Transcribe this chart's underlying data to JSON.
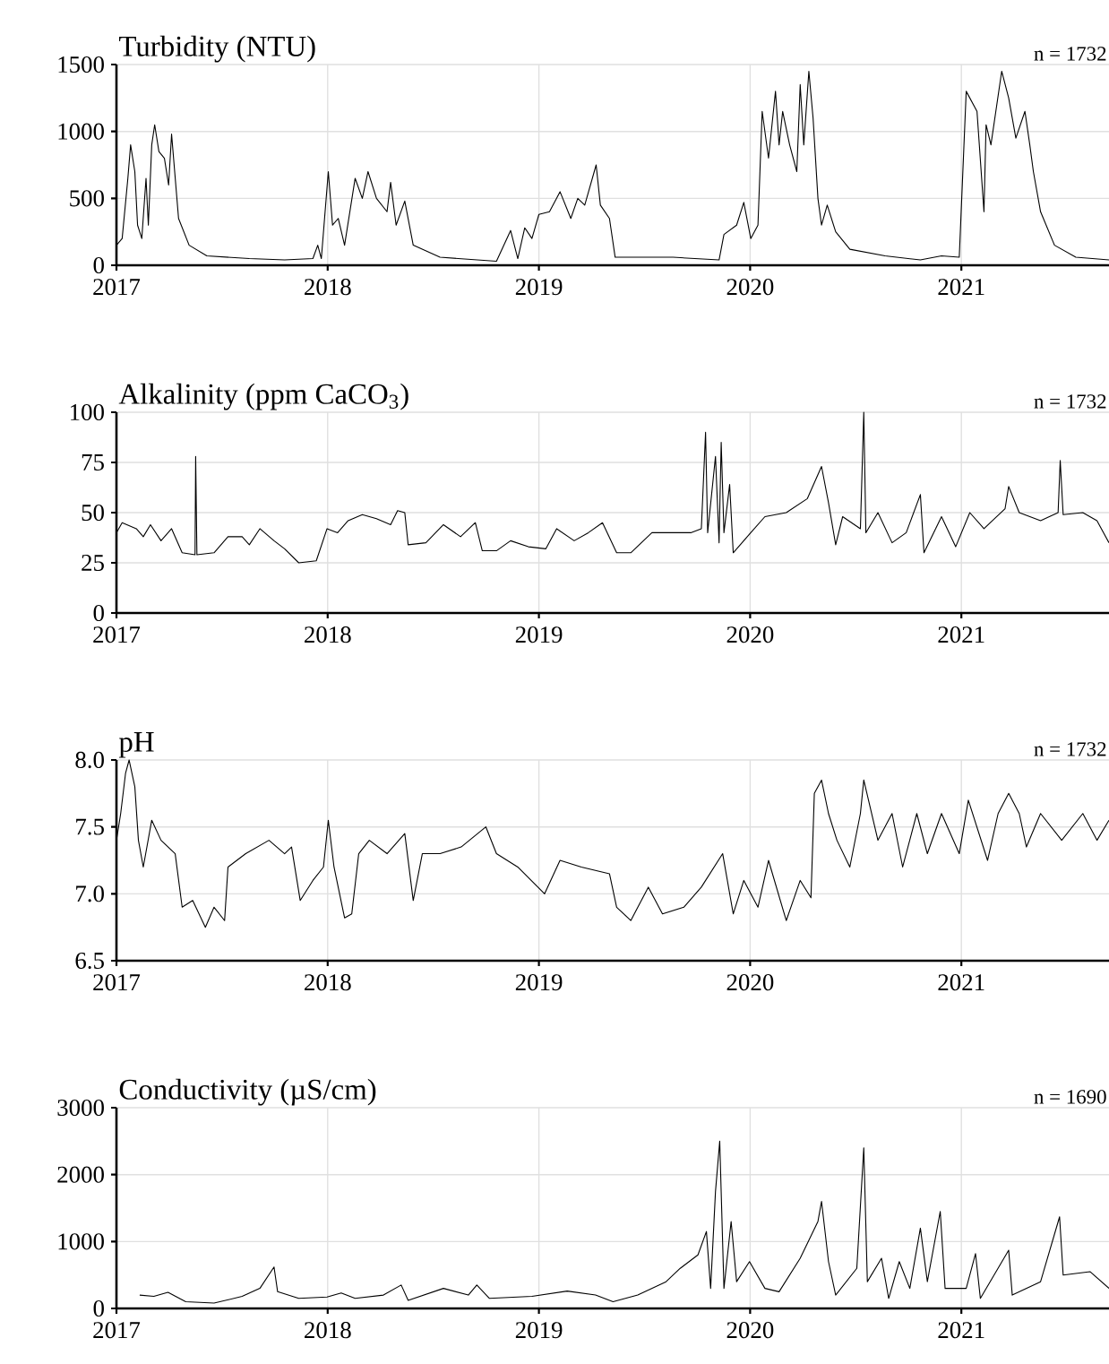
{
  "chart_data": [
    {
      "type": "line",
      "title": "Turbidity (NTU)",
      "annotations": [
        "n = 1732"
      ],
      "color": "#000000",
      "grid": true,
      "xlim": [
        2017.0,
        2021.699
      ],
      "xticks": [
        2017,
        2018,
        2019,
        2020,
        2021
      ],
      "ylim": [
        0,
        1500
      ],
      "yticks": [
        0,
        500,
        1000,
        1500
      ],
      "x": [
        2017.0,
        2017.027,
        2017.054,
        2017.067,
        2017.087,
        2017.1,
        2017.12,
        2017.14,
        2017.151,
        2017.167,
        2017.181,
        2017.201,
        2017.227,
        2017.247,
        2017.261,
        2017.294,
        2017.344,
        2017.428,
        2017.629,
        2017.796,
        2017.93,
        2017.953,
        2017.97,
        2018.003,
        2018.023,
        2018.05,
        2018.08,
        2018.13,
        2018.164,
        2018.191,
        2018.231,
        2018.281,
        2018.298,
        2018.324,
        2018.365,
        2018.405,
        2018.532,
        2018.799,
        2018.866,
        2018.9,
        2018.933,
        2018.967,
        2019.0,
        2019.05,
        2019.1,
        2019.151,
        2019.184,
        2019.217,
        2019.271,
        2019.291,
        2019.334,
        2019.361,
        2019.635,
        2019.853,
        2019.876,
        2019.936,
        2019.97,
        2020.003,
        2020.037,
        2020.057,
        2020.087,
        2020.12,
        2020.137,
        2020.154,
        2020.187,
        2020.221,
        2020.237,
        2020.254,
        2020.278,
        2020.298,
        2020.321,
        2020.338,
        2020.365,
        2020.405,
        2020.472,
        2020.639,
        2020.806,
        2020.906,
        2020.99,
        2021.023,
        2021.074,
        2021.107,
        2021.117,
        2021.14,
        2021.191,
        2021.224,
        2021.258,
        2021.301,
        2021.324,
        2021.341,
        2021.375,
        2021.441,
        2021.542,
        2021.699
      ],
      "values": [
        150,
        200,
        650,
        900,
        700,
        300,
        200,
        650,
        300,
        900,
        1050,
        850,
        800,
        600,
        980,
        350,
        150,
        70,
        50,
        40,
        50,
        150,
        50,
        700,
        300,
        350,
        150,
        650,
        500,
        700,
        500,
        400,
        620,
        300,
        480,
        150,
        60,
        30,
        260,
        50,
        280,
        200,
        380,
        400,
        550,
        350,
        500,
        450,
        750,
        450,
        350,
        60,
        60,
        40,
        230,
        300,
        470,
        200,
        300,
        1150,
        800,
        1300,
        900,
        1150,
        900,
        700,
        1350,
        900,
        1450,
        1100,
        500,
        300,
        450,
        250,
        120,
        70,
        40,
        70,
        60,
        1300,
        1150,
        400,
        1050,
        900,
        1450,
        1250,
        950,
        1150,
        900,
        700,
        400,
        150,
        60,
        40
      ]
    },
    {
      "type": "line",
      "title": "Alkalinity (ppm CaCO$_{3}$)",
      "annotations": [
        "n = 1732"
      ],
      "color": "#000000",
      "grid": true,
      "xlim": [
        2017.0,
        2021.699
      ],
      "xticks": [
        2017,
        2018,
        2019,
        2020,
        2021
      ],
      "ylim": [
        0,
        100
      ],
      "yticks": [
        0,
        25,
        50,
        75,
        100
      ],
      "x": [
        2017.0,
        2017.027,
        2017.094,
        2017.127,
        2017.161,
        2017.211,
        2017.261,
        2017.311,
        2017.372,
        2017.375,
        2017.381,
        2017.462,
        2017.528,
        2017.595,
        2017.629,
        2017.679,
        2017.746,
        2017.796,
        2017.863,
        2017.946,
        2017.997,
        2018.047,
        2018.097,
        2018.164,
        2018.231,
        2018.298,
        2018.331,
        2018.365,
        2018.381,
        2018.465,
        2018.548,
        2018.629,
        2018.699,
        2018.732,
        2018.799,
        2018.866,
        2018.95,
        2019.033,
        2019.084,
        2019.167,
        2019.234,
        2019.301,
        2019.368,
        2019.435,
        2019.535,
        2019.635,
        2019.719,
        2019.769,
        2019.789,
        2019.799,
        2019.836,
        2019.853,
        2019.863,
        2019.876,
        2019.903,
        2019.92,
        2020.003,
        2020.07,
        2020.171,
        2020.271,
        2020.338,
        2020.371,
        2020.405,
        2020.438,
        2020.522,
        2020.538,
        2020.548,
        2020.605,
        2020.672,
        2020.739,
        2020.806,
        2020.823,
        2020.906,
        2020.973,
        2021.04,
        2021.107,
        2021.207,
        2021.224,
        2021.274,
        2021.375,
        2021.458,
        2021.468,
        2021.482,
        2021.575,
        2021.642,
        2021.699
      ],
      "values": [
        40,
        45,
        42,
        38,
        44,
        36,
        42,
        30,
        29,
        78,
        29,
        30,
        38,
        38,
        34,
        42,
        36,
        32,
        25,
        26,
        42,
        40,
        46,
        49,
        47,
        44,
        51,
        50,
        34,
        35,
        44,
        38,
        45,
        31,
        31,
        36,
        33,
        32,
        42,
        36,
        40,
        45,
        30,
        30,
        40,
        40,
        40,
        42,
        90,
        40,
        78,
        35,
        85,
        40,
        64,
        30,
        40,
        48,
        50,
        57,
        73,
        55,
        34,
        48,
        42,
        100,
        40,
        50,
        35,
        40,
        59,
        30,
        48,
        33,
        50,
        42,
        52,
        63,
        50,
        46,
        50,
        76,
        49,
        50,
        46,
        35
      ]
    },
    {
      "type": "line",
      "title": "pH",
      "annotations": [
        "n = 1732"
      ],
      "color": "#000000",
      "grid": true,
      "xlim": [
        2017.0,
        2021.699
      ],
      "xticks": [
        2017,
        2018,
        2019,
        2020,
        2021
      ],
      "ylim": [
        6.5,
        8.0
      ],
      "yticks": [
        {
          "value": 6.5,
          "label": "6.5"
        },
        {
          "value": 7.0,
          "label": "7.0"
        },
        {
          "value": 7.5,
          "label": "7.5"
        },
        {
          "value": 8.0,
          "label": "8.0"
        }
      ],
      "x": [
        2017.0,
        2017.02,
        2017.043,
        2017.06,
        2017.087,
        2017.104,
        2017.127,
        2017.167,
        2017.211,
        2017.278,
        2017.311,
        2017.361,
        2017.421,
        2017.462,
        2017.512,
        2017.528,
        2017.612,
        2017.722,
        2017.796,
        2017.829,
        2017.87,
        2017.93,
        2017.98,
        2018.003,
        2018.03,
        2018.08,
        2018.114,
        2018.147,
        2018.197,
        2018.281,
        2018.365,
        2018.405,
        2018.448,
        2018.532,
        2018.632,
        2018.749,
        2018.799,
        2018.9,
        2019.027,
        2019.1,
        2019.201,
        2019.334,
        2019.368,
        2019.435,
        2019.518,
        2019.585,
        2019.686,
        2019.769,
        2019.87,
        2019.92,
        2019.97,
        2020.037,
        2020.087,
        2020.171,
        2020.237,
        2020.288,
        2020.304,
        2020.338,
        2020.371,
        2020.411,
        2020.472,
        2020.522,
        2020.538,
        2020.605,
        2020.672,
        2020.722,
        2020.789,
        2020.839,
        2020.906,
        2020.99,
        2021.033,
        2021.124,
        2021.174,
        2021.224,
        2021.274,
        2021.308,
        2021.375,
        2021.475,
        2021.575,
        2021.642,
        2021.699
      ],
      "values": [
        7.4,
        7.6,
        7.9,
        8.0,
        7.8,
        7.4,
        7.2,
        7.55,
        7.4,
        7.3,
        6.9,
        6.95,
        6.75,
        6.9,
        6.8,
        7.2,
        7.3,
        7.4,
        7.3,
        7.35,
        6.95,
        7.1,
        7.2,
        7.55,
        7.2,
        6.82,
        6.85,
        7.3,
        7.4,
        7.3,
        7.45,
        6.95,
        7.3,
        7.3,
        7.35,
        7.5,
        7.3,
        7.2,
        7.0,
        7.25,
        7.2,
        7.15,
        6.9,
        6.8,
        7.05,
        6.85,
        6.9,
        7.05,
        7.3,
        6.85,
        7.1,
        6.9,
        7.25,
        6.8,
        7.1,
        6.97,
        7.75,
        7.85,
        7.6,
        7.4,
        7.2,
        7.6,
        7.85,
        7.4,
        7.6,
        7.2,
        7.6,
        7.3,
        7.6,
        7.3,
        7.7,
        7.25,
        7.6,
        7.75,
        7.6,
        7.35,
        7.6,
        7.4,
        7.6,
        7.4,
        7.55
      ]
    },
    {
      "type": "line",
      "title": "Conductivity (µS/cm)",
      "annotations": [
        "n = 1690"
      ],
      "color": "#000000",
      "grid": true,
      "xlim": [
        2017.0,
        2021.699
      ],
      "xticks": [
        2017,
        2018,
        2019,
        2020,
        2021
      ],
      "ylim": [
        0,
        3000
      ],
      "yticks": [
        0,
        1000,
        2000,
        3000
      ],
      "x": [
        2017.11,
        2017.177,
        2017.244,
        2017.328,
        2017.462,
        2017.595,
        2017.679,
        2017.746,
        2017.763,
        2017.863,
        2017.997,
        2018.064,
        2018.13,
        2018.264,
        2018.348,
        2018.381,
        2018.548,
        2018.666,
        2018.706,
        2018.766,
        2018.967,
        2019.134,
        2019.268,
        2019.351,
        2019.468,
        2019.602,
        2019.669,
        2019.753,
        2019.793,
        2019.813,
        2019.836,
        2019.856,
        2019.876,
        2019.91,
        2019.936,
        2019.997,
        2020.07,
        2020.137,
        2020.237,
        2020.321,
        2020.338,
        2020.371,
        2020.405,
        2020.505,
        2020.538,
        2020.555,
        2020.622,
        2020.656,
        2020.706,
        2020.756,
        2020.806,
        2020.839,
        2020.9,
        2020.923,
        2021.023,
        2021.067,
        2021.09,
        2021.224,
        2021.241,
        2021.375,
        2021.465,
        2021.482,
        2021.609,
        2021.699
      ],
      "values": [
        200,
        180,
        240,
        100,
        80,
        180,
        300,
        620,
        250,
        150,
        170,
        230,
        150,
        200,
        350,
        120,
        300,
        200,
        350,
        150,
        180,
        260,
        200,
        100,
        200,
        400,
        600,
        800,
        1150,
        300,
        1750,
        2500,
        300,
        1300,
        400,
        700,
        300,
        250,
        750,
        1300,
        1600,
        700,
        200,
        600,
        2400,
        400,
        750,
        150,
        700,
        300,
        1200,
        400,
        1450,
        300,
        300,
        820,
        150,
        870,
        200,
        400,
        1370,
        500,
        550,
        300
      ]
    }
  ]
}
